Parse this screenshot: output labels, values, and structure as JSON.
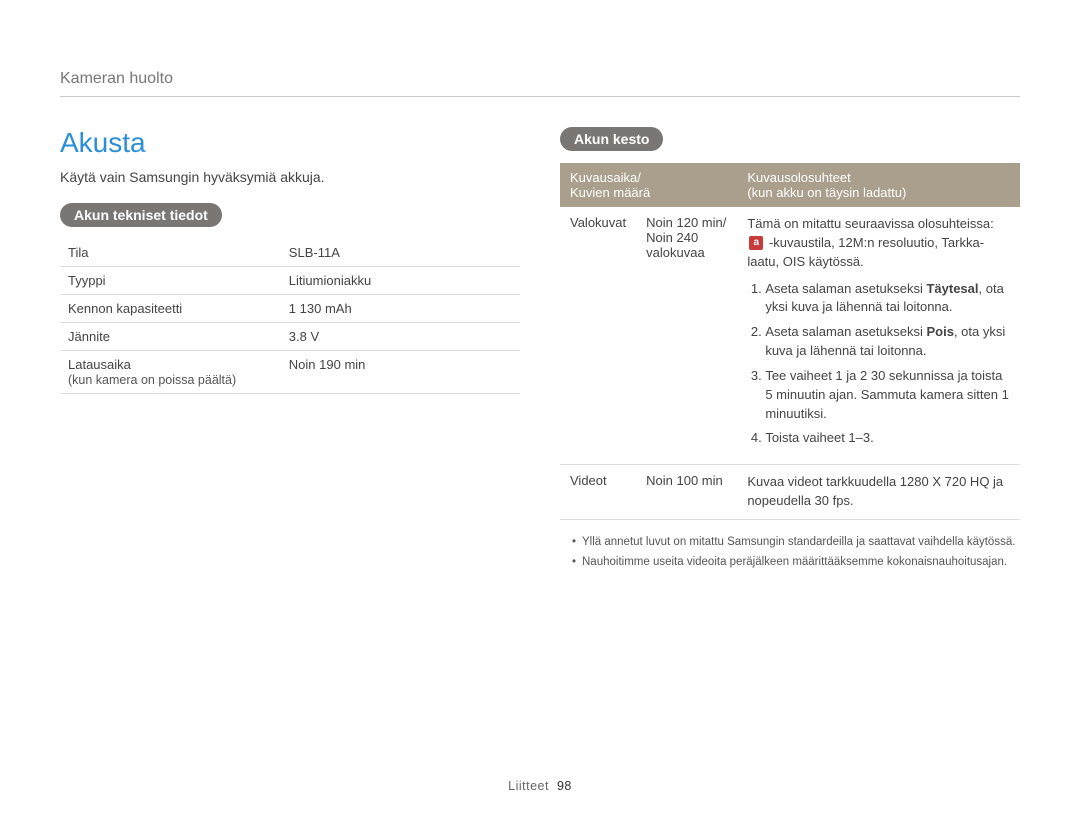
{
  "runningHead": "Kameran huolto",
  "title": "Akusta",
  "intro": "Käytä vain Samsungin hyväksymiä akkuja.",
  "specs": {
    "heading": "Akun tekniset tiedot",
    "rows": [
      {
        "key": "Tila",
        "sub": "",
        "value": "SLB-11A"
      },
      {
        "key": "Tyyppi",
        "sub": "",
        "value": "Litiumioniakku"
      },
      {
        "key": "Kennon kapasiteetti",
        "sub": "",
        "value": "1 130 mAh"
      },
      {
        "key": "Jännite",
        "sub": "",
        "value": "3.8 V"
      },
      {
        "key": "Latausaika",
        "sub": "(kun kamera on poissa päältä)",
        "value": "Noin 190 min"
      }
    ]
  },
  "life": {
    "heading": "Akun kesto",
    "header1a": "Kuvausaika/",
    "header1b": "Kuvien määrä",
    "header2a": "Kuvausolosuhteet",
    "header2b": "(kun akku on täysin ladattu)",
    "photo": {
      "label": "Valokuvat",
      "valueLine1": "Noin 120 min/",
      "valueLine2": "Noin 240",
      "valueLine3": "valokuvaa",
      "condIntroPre": "Tämä on mitattu seuraavissa olosuhteissa: ",
      "condIntroPost": " -kuvaustila, 12M:n resoluutio, Tarkka-laatu, OIS käytössä.",
      "step1pre": "Aseta salaman asetukseksi ",
      "step1bold": "Täytesal",
      "step1post": ", ota yksi kuva ja lähennä tai loitonna.",
      "step2pre": "Aseta salaman asetukseksi ",
      "step2bold": "Pois",
      "step2post": ", ota yksi kuva ja lähennä tai loitonna.",
      "step3": "Tee vaiheet 1 ja 2 30 sekunnissa ja toista 5 minuutin ajan. Sammuta kamera sitten 1 minuutiksi.",
      "step4": "Toista vaiheet 1–3."
    },
    "video": {
      "label": "Videot",
      "value": "Noin 100 min",
      "cond": "Kuvaa videot tarkkuudella 1280 X 720 HQ ja nopeudella 30 fps."
    },
    "notes": [
      "Yllä annetut luvut on mitattu Samsungin standardeilla ja saattavat vaihdella käytössä.",
      "Nauhoitimme useita videoita peräjälkeen määrittääksemme kokonaisnauhoitusajan."
    ]
  },
  "footer": {
    "section": "Liitteet",
    "page": "98"
  }
}
